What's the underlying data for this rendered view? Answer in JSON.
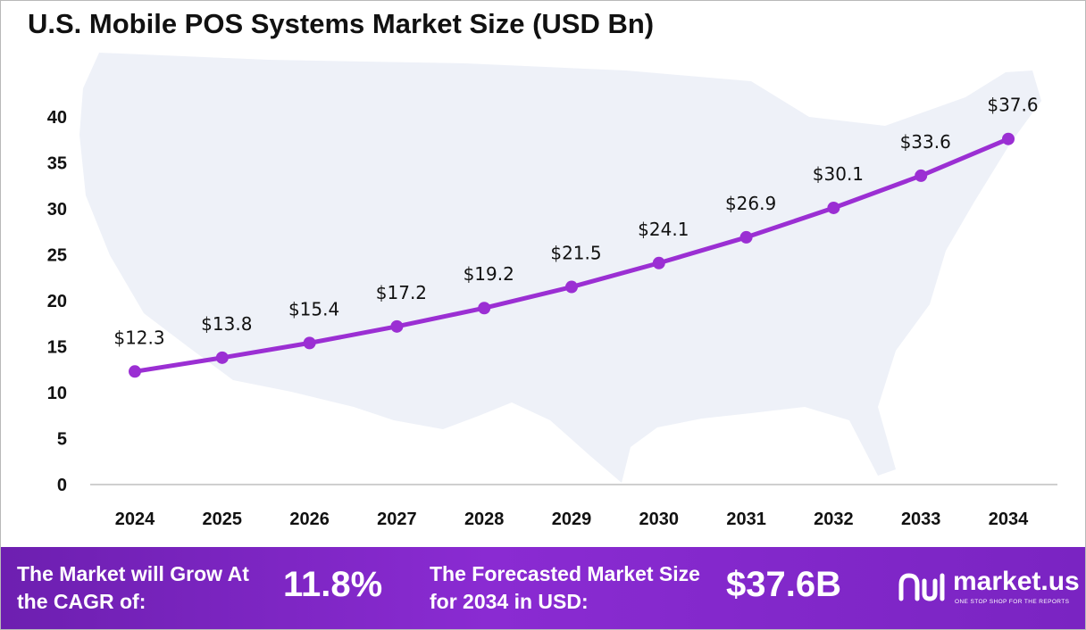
{
  "chart_data": {
    "type": "line",
    "title": "U.S. Mobile POS Systems Market Size (USD Bn)",
    "xlabel": "",
    "ylabel": "",
    "categories": [
      "2024",
      "2025",
      "2026",
      "2027",
      "2028",
      "2029",
      "2030",
      "2031",
      "2032",
      "2033",
      "2034"
    ],
    "values": [
      12.3,
      13.8,
      15.4,
      17.2,
      19.2,
      21.5,
      24.1,
      26.9,
      30.1,
      33.6,
      37.6
    ],
    "data_labels": [
      "$12.3",
      "$13.8",
      "$15.4",
      "$17.2",
      "$19.2",
      "$21.5",
      "$24.1",
      "$26.9",
      "$30.1",
      "$33.6",
      "$37.6"
    ],
    "y_ticks": [
      0,
      5,
      10,
      15,
      20,
      25,
      30,
      35,
      40
    ],
    "ylim": [
      0,
      40
    ],
    "grid": false,
    "legend": "none",
    "line_color": "#9b2fd3",
    "background_map": "united-states-silhouette",
    "map_color": "#eef1f8"
  },
  "footer": {
    "cagr_label": "The Market will Grow At the CAGR of:",
    "cagr_value": "11.8%",
    "forecast_label": "The Forecasted Market Size for 2034 in USD:",
    "forecast_value": "$37.6B",
    "background_color": "#7a24c2"
  },
  "brand": {
    "name": "market.us",
    "tagline": "ONE STOP SHOP FOR THE REPORTS",
    "icon": "market-us-logo-icon"
  }
}
